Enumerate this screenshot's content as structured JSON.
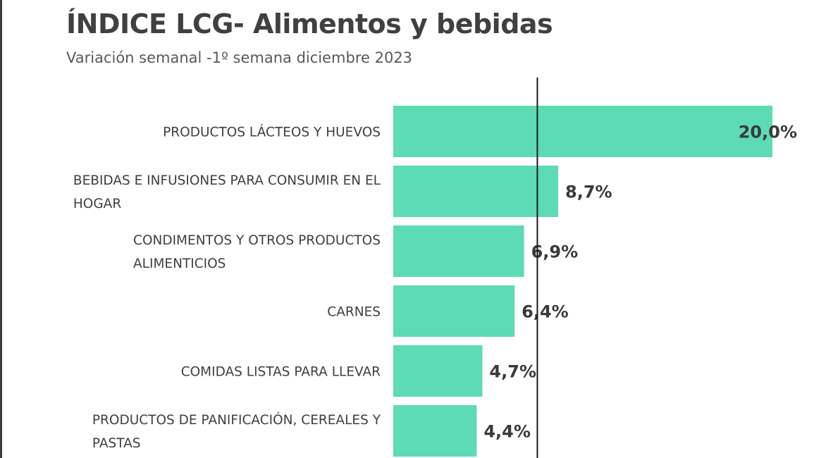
{
  "chart_data": {
    "type": "bar",
    "orientation": "horizontal",
    "title": "ÍNDICE LCG- Alimentos y bebidas",
    "subtitle": "Variación semanal -1º semana diciembre 2023",
    "categories": [
      [
        "PRODUCTOS LÁCTEOS Y HUEVOS"
      ],
      [
        "BEBIDAS E INFUSIONES PARA CONSUMIR EN EL",
        "HOGAR"
      ],
      [
        "CONDIMENTOS Y OTROS PRODUCTOS",
        "ALIMENTICIOS"
      ],
      [
        "CARNES"
      ],
      [
        "COMIDAS LISTAS PARA LLEVAR"
      ],
      [
        "PRODUCTOS DE PANIFICACIÓN, CEREALES Y",
        "PASTAS"
      ]
    ],
    "values": [
      20.0,
      8.7,
      6.9,
      6.4,
      4.7,
      4.4
    ],
    "value_labels": [
      "20,0%",
      "8,7%",
      "6,9%",
      "6,4%",
      "4,7%",
      "4,4%"
    ],
    "reference_line": 7.6,
    "xlim": [
      0,
      20.0
    ],
    "grid": false,
    "legend": "none",
    "bar_color": "#5ddbb4"
  }
}
